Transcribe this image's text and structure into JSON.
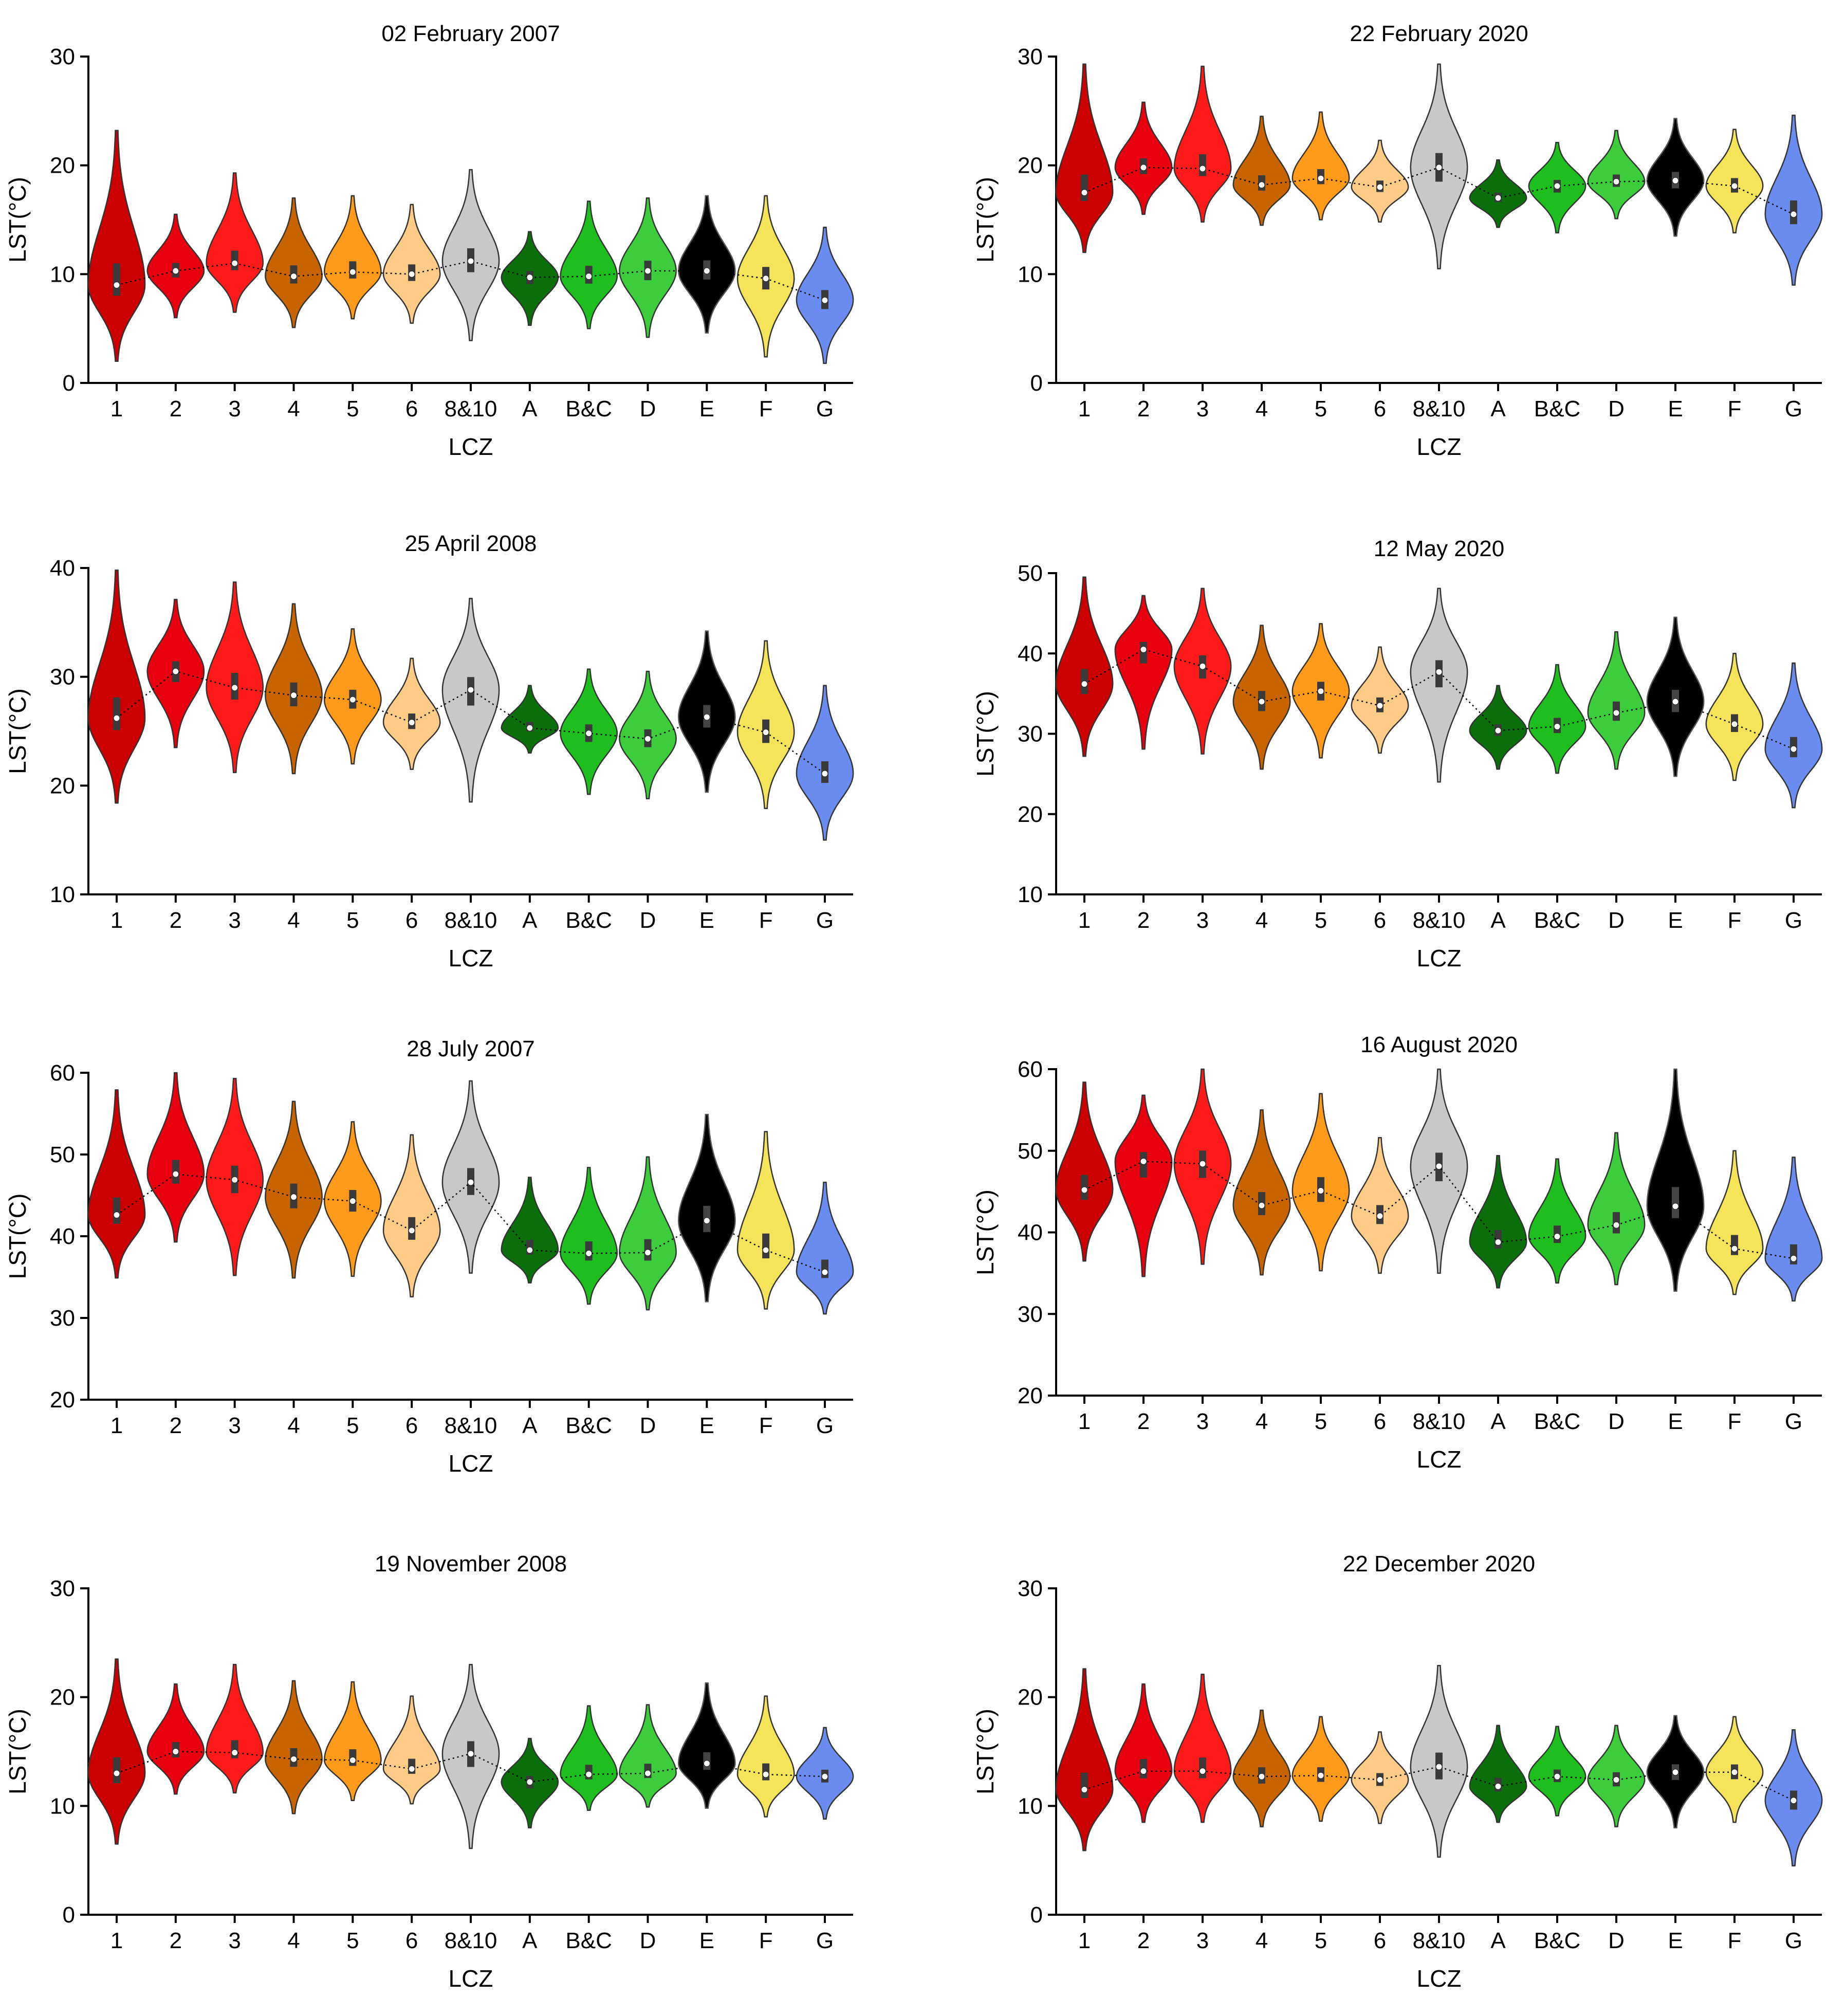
{
  "figure": {
    "xlabel": "LCZ",
    "ylabel": "LST(°C)"
  },
  "palette": {
    "1": "#cc0000",
    "2": "#e8000f",
    "3": "#ff1a1a",
    "4": "#c86400",
    "5": "#ff9a1a",
    "6": "#ffcc88",
    "8&10": "#c8c8c8",
    "A": "#0a6e0a",
    "B&C": "#1ebe1e",
    "D": "#3ccc3c",
    "E": "#000000",
    "F": "#f5e35a",
    "G": "#6a8cf0"
  },
  "chart_data": [
    {
      "type": "violin",
      "title": "02 February 2007",
      "xlabel": "LCZ",
      "ylabel": "LST(°C)",
      "ylim": [
        0,
        30
      ],
      "yticks": [
        0,
        10,
        20,
        30
      ],
      "categories": [
        "1",
        "2",
        "3",
        "4",
        "5",
        "6",
        "8&10",
        "A",
        "B&C",
        "D",
        "E",
        "F",
        "G"
      ],
      "medians": [
        9,
        10.3,
        11,
        9.8,
        10.2,
        10,
        11.2,
        9.7,
        9.8,
        10.3,
        10.3,
        9.6,
        7.6
      ],
      "min": [
        2,
        6,
        6.5,
        5.1,
        5.9,
        5.5,
        3.9,
        5.3,
        5,
        4.2,
        4.6,
        2.4,
        1.8
      ],
      "max": [
        23.2,
        15.5,
        19.3,
        17,
        17.2,
        16.4,
        19.6,
        13.9,
        16.7,
        17,
        17.2,
        17.2,
        14.3
      ]
    },
    {
      "type": "violin",
      "title": "22 February 2020",
      "xlabel": "LCZ",
      "ylabel": "LST(°C)",
      "ylim": [
        0,
        30
      ],
      "yticks": [
        0,
        10,
        20,
        30
      ],
      "categories": [
        "1",
        "2",
        "3",
        "4",
        "5",
        "6",
        "8&10",
        "A",
        "B&C",
        "D",
        "E",
        "F",
        "G"
      ],
      "medians": [
        17.5,
        19.8,
        19.7,
        18.2,
        18.8,
        18,
        19.8,
        17,
        18.1,
        18.5,
        18.6,
        18.1,
        15.5
      ],
      "min": [
        12,
        15.5,
        14.8,
        14.5,
        15,
        14.8,
        10.5,
        14.3,
        13.8,
        15.1,
        13.5,
        13.8,
        9
      ],
      "max": [
        29.3,
        25.8,
        29.1,
        24.5,
        24.9,
        22.3,
        29.3,
        20.5,
        22.1,
        23.2,
        24.3,
        23.3,
        24.6
      ]
    },
    {
      "type": "violin",
      "title": "25 April 2008",
      "xlabel": "LCZ",
      "ylabel": "LST(°C)",
      "ylim": [
        10,
        40
      ],
      "yticks": [
        10,
        20,
        30,
        40
      ],
      "categories": [
        "1",
        "2",
        "3",
        "4",
        "5",
        "6",
        "8&10",
        "A",
        "B&C",
        "D",
        "E",
        "F",
        "G"
      ],
      "medians": [
        26.2,
        30.5,
        29,
        28.3,
        27.9,
        25.8,
        28.8,
        25.3,
        24.8,
        24.3,
        26.3,
        24.9,
        21.1
      ],
      "min": [
        18.4,
        23.5,
        21.2,
        21.1,
        22,
        21.5,
        18.5,
        23,
        19.2,
        18.8,
        19.4,
        17.9,
        15
      ],
      "max": [
        39.8,
        37.1,
        38.7,
        36.7,
        34.4,
        31.7,
        37.2,
        29.2,
        30.7,
        30.5,
        34.2,
        33.3,
        29.2
      ]
    },
    {
      "type": "violin",
      "title": "12 May 2020",
      "xlabel": "LCZ",
      "ylabel": "LST(°C)",
      "ylim": [
        10,
        50
      ],
      "yticks": [
        10,
        20,
        30,
        40,
        50
      ],
      "categories": [
        "1",
        "2",
        "3",
        "4",
        "5",
        "6",
        "8&10",
        "A",
        "B&C",
        "D",
        "E",
        "F",
        "G"
      ],
      "medians": [
        36.2,
        40.5,
        38.4,
        34,
        35.3,
        33.5,
        37.7,
        30.4,
        30.9,
        32.6,
        34,
        31.2,
        28.1
      ],
      "min": [
        27.2,
        28.1,
        27.5,
        25.6,
        27,
        27.6,
        24,
        25.6,
        25.1,
        25.6,
        24.7,
        24.2,
        20.8
      ],
      "max": [
        49.5,
        47.2,
        48.1,
        43.5,
        43.7,
        40.8,
        48.1,
        36,
        38.6,
        42.7,
        44.5,
        40,
        38.8
      ]
    },
    {
      "type": "violin",
      "title": "28 July 2007",
      "xlabel": "LCZ",
      "ylabel": "LST(°C)",
      "ylim": [
        20,
        60
      ],
      "yticks": [
        20,
        30,
        40,
        50,
        60
      ],
      "categories": [
        "1",
        "2",
        "3",
        "4",
        "5",
        "6",
        "8&10",
        "A",
        "B&C",
        "D",
        "E",
        "F",
        "G"
      ],
      "medians": [
        42.6,
        47.6,
        46.9,
        44.8,
        44.3,
        40.7,
        46.6,
        38.3,
        37.9,
        38,
        41.9,
        38.3,
        35.6
      ],
      "min": [
        34.9,
        39.3,
        35.2,
        34.9,
        35.1,
        32.6,
        35.5,
        34.3,
        31.7,
        31,
        32,
        31.1,
        30.5
      ],
      "max": [
        57.9,
        60,
        59.3,
        56.5,
        54,
        52.4,
        59,
        47.2,
        48.4,
        49.7,
        54.9,
        52.8,
        46.6
      ]
    },
    {
      "type": "violin",
      "title": "16 August 2020",
      "xlabel": "LCZ",
      "ylabel": "LST(°C)",
      "ylim": [
        20,
        60
      ],
      "yticks": [
        20,
        30,
        40,
        50,
        60
      ],
      "categories": [
        "1",
        "2",
        "3",
        "4",
        "5",
        "6",
        "8&10",
        "A",
        "B&C",
        "D",
        "E",
        "F",
        "G"
      ],
      "medians": [
        45.2,
        48.7,
        48.4,
        43.3,
        45.1,
        42,
        48.1,
        38.8,
        39.5,
        40.9,
        43.2,
        38,
        36.8
      ],
      "min": [
        36.5,
        34.6,
        36.1,
        34.8,
        35.3,
        35,
        35,
        33.2,
        33.8,
        33.6,
        32.8,
        32.4,
        31.6
      ],
      "max": [
        58.4,
        56.8,
        60,
        55,
        57,
        51.6,
        60,
        49.4,
        49,
        52.2,
        60,
        50,
        49.2
      ]
    },
    {
      "type": "violin",
      "title": "19 November 2008",
      "xlabel": "LCZ",
      "ylabel": "LST(°C)",
      "ylim": [
        0,
        30
      ],
      "yticks": [
        0,
        10,
        20,
        30
      ],
      "categories": [
        "1",
        "2",
        "3",
        "4",
        "5",
        "6",
        "8&10",
        "A",
        "B&C",
        "D",
        "E",
        "F",
        "G"
      ],
      "medians": [
        13,
        15,
        14.9,
        14.3,
        14.2,
        13.4,
        14.8,
        12.2,
        12.9,
        13,
        13.9,
        12.9,
        12.7
      ],
      "min": [
        6.5,
        11.1,
        11.2,
        9.3,
        10.5,
        10.2,
        6.1,
        8,
        9.6,
        9.9,
        9.8,
        9,
        8.8
      ],
      "max": [
        23.5,
        21.2,
        23,
        21.5,
        21.4,
        20.1,
        23,
        16.2,
        19.2,
        19.3,
        21.3,
        20.1,
        17.2
      ]
    },
    {
      "type": "violin",
      "title": "22 December 2020",
      "xlabel": "LCZ",
      "ylabel": "LST(°C)",
      "ylim": [
        0,
        30
      ],
      "yticks": [
        0,
        10,
        20,
        30
      ],
      "categories": [
        "1",
        "2",
        "3",
        "4",
        "5",
        "6",
        "8&10",
        "A",
        "B&C",
        "D",
        "E",
        "F",
        "G"
      ],
      "medians": [
        11.5,
        13.2,
        13.2,
        12.7,
        12.8,
        12.4,
        13.6,
        11.8,
        12.7,
        12.4,
        13.1,
        13.1,
        10.5
      ],
      "min": [
        5.9,
        8.5,
        8.5,
        8.1,
        8.6,
        8.4,
        5.3,
        8.5,
        9.1,
        8.1,
        8,
        8.5,
        4.5
      ],
      "max": [
        22.6,
        21.2,
        22.1,
        18.8,
        18.2,
        16.8,
        22.9,
        17.4,
        17.3,
        17.4,
        18.3,
        18.2,
        17
      ]
    }
  ]
}
